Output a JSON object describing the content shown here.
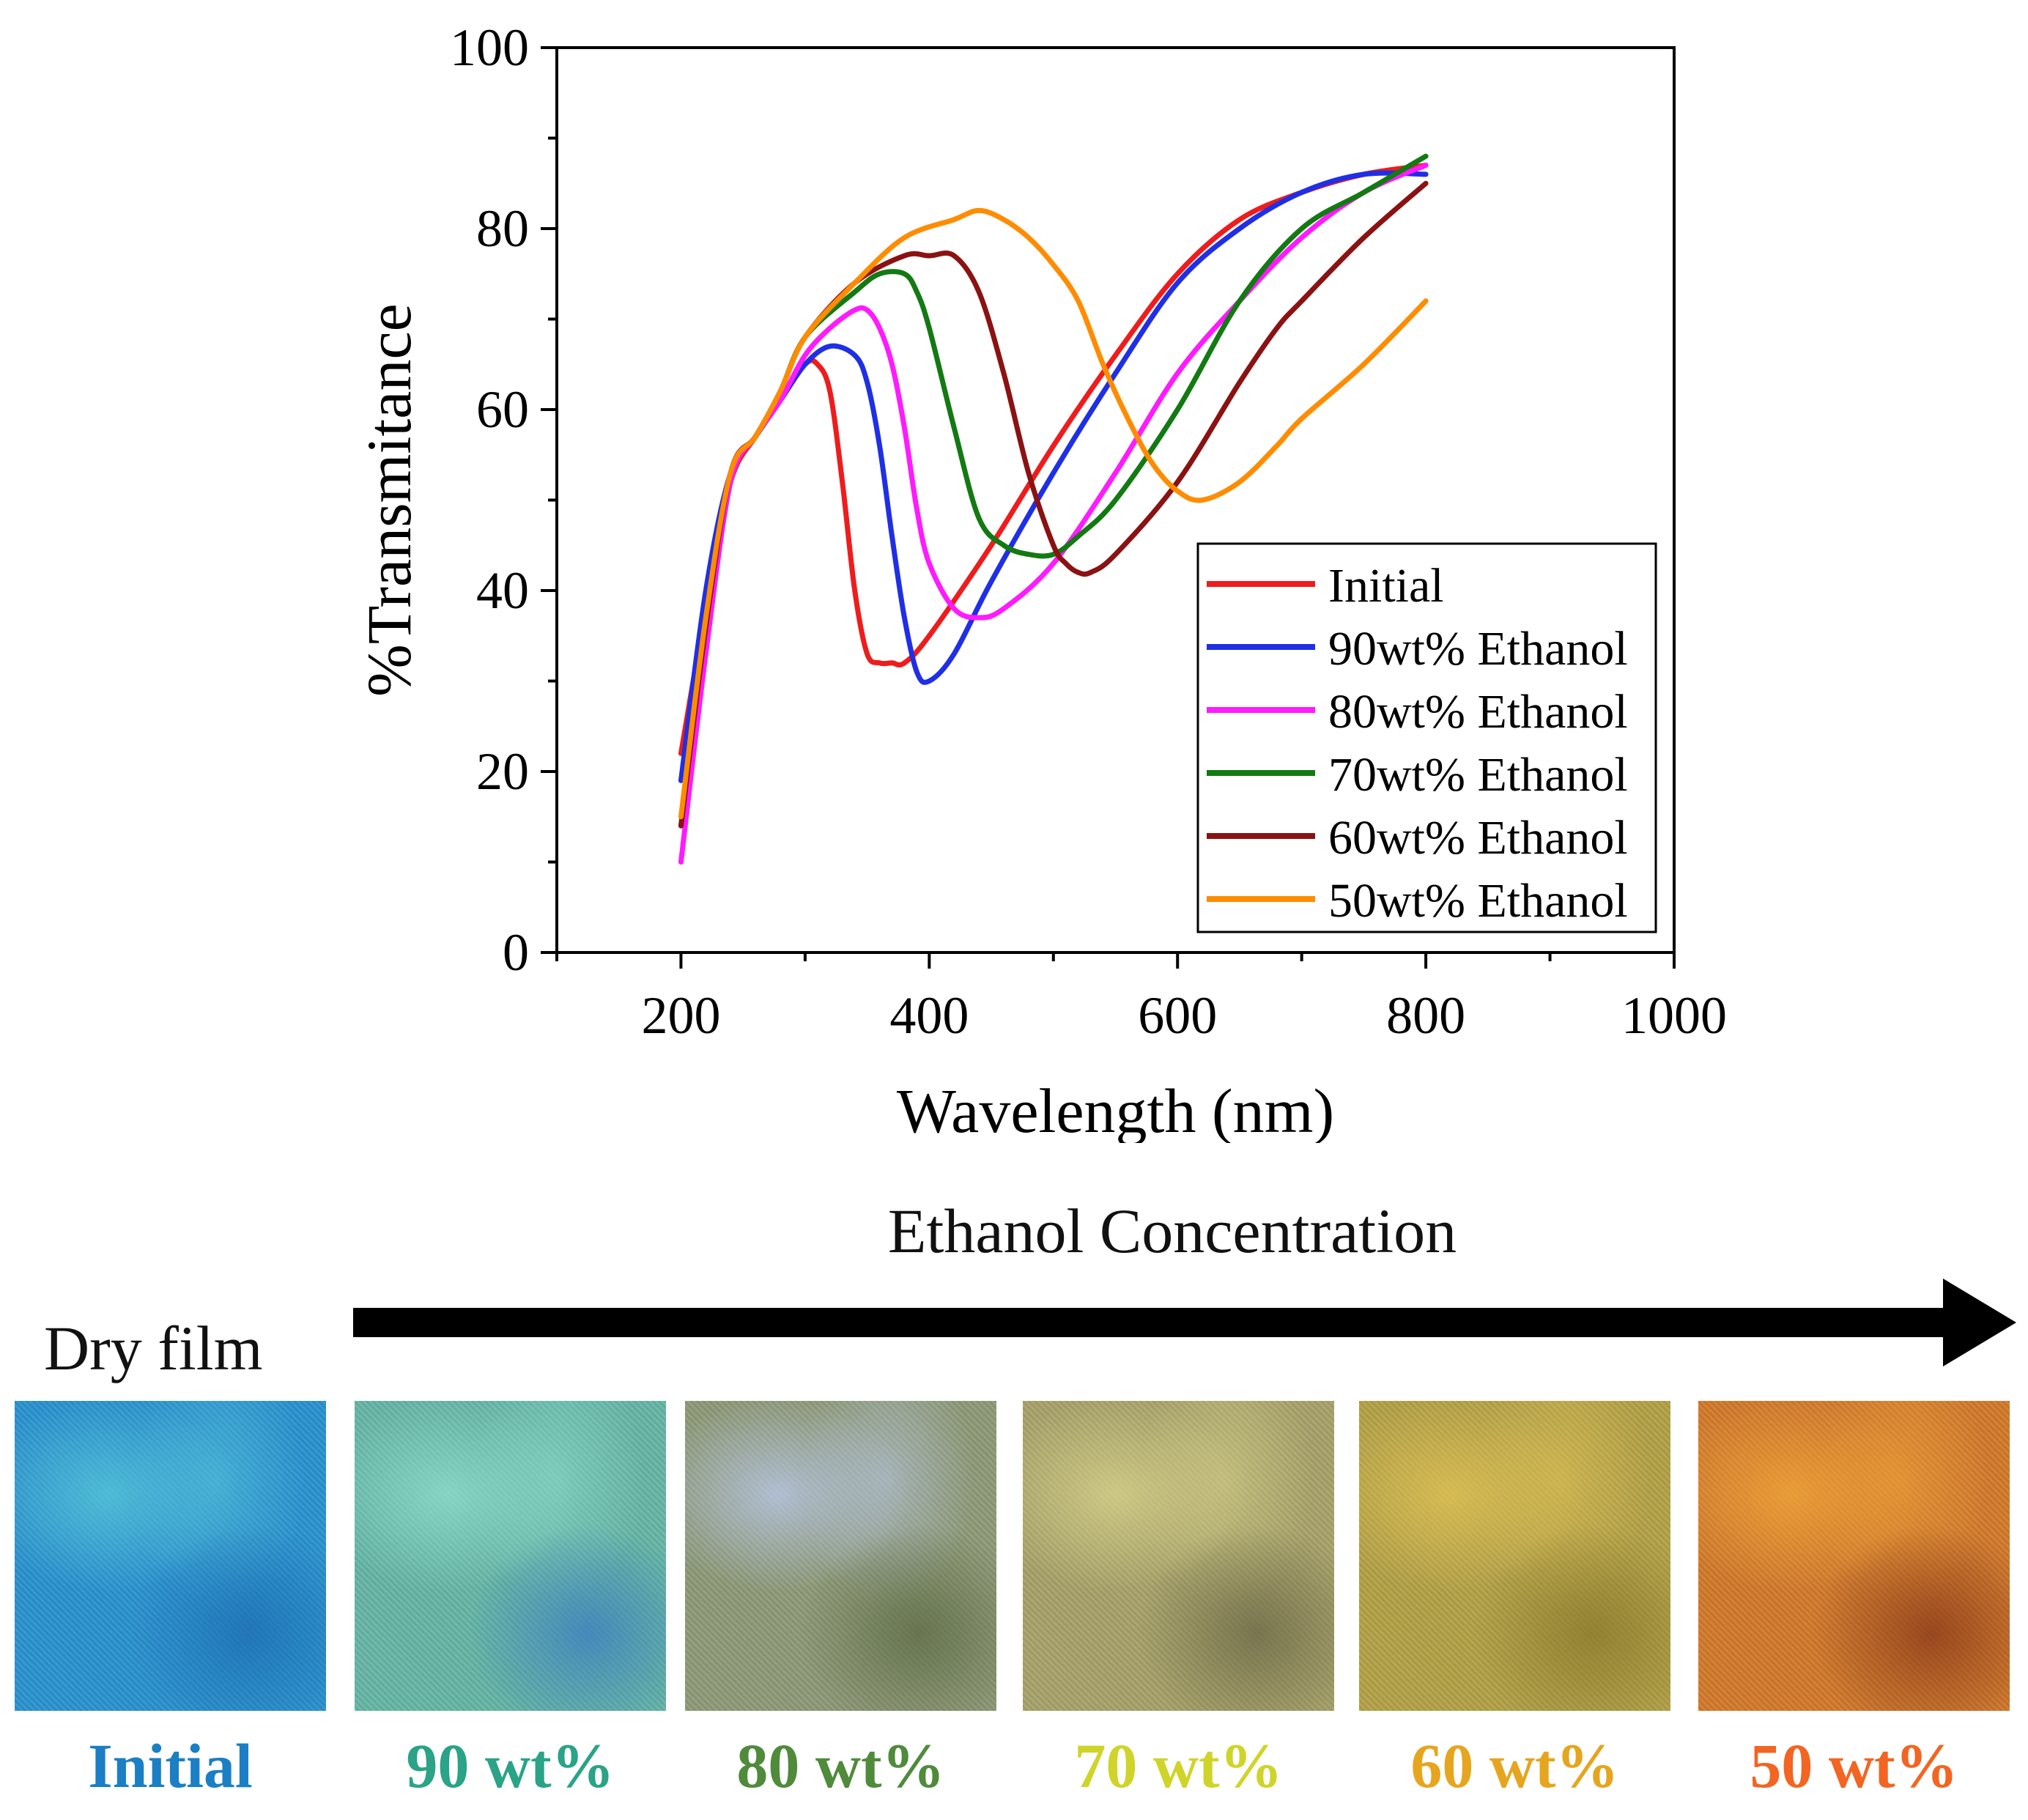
{
  "chart_data": {
    "type": "line",
    "xlabel": "Wavelength (nm)",
    "ylabel": "%Transmitance",
    "xlim": [
      100,
      1000
    ],
    "ylim": [
      0,
      100
    ],
    "xticks": [
      200,
      400,
      600,
      800,
      1000
    ],
    "yticks": [
      0,
      20,
      40,
      60,
      80,
      100
    ],
    "legend_position": "bottom-right",
    "series": [
      {
        "name": "Initial",
        "color": "#ee1c1c",
        "x": [
          200,
          220,
          240,
          260,
          280,
          300,
          310,
          320,
          330,
          340,
          350,
          360,
          370,
          380,
          400,
          450,
          500,
          550,
          600,
          650,
          700,
          750,
          800
        ],
        "y": [
          22,
          38,
          52,
          57,
          61,
          65,
          65,
          62,
          52,
          40,
          33,
          32,
          32,
          32,
          35,
          45,
          56,
          66,
          75,
          81,
          84,
          86,
          87
        ]
      },
      {
        "name": "90wt% Ethanol",
        "color": "#1f2fe6",
        "x": [
          200,
          220,
          240,
          260,
          280,
          300,
          320,
          340,
          350,
          360,
          370,
          380,
          390,
          400,
          420,
          450,
          500,
          550,
          600,
          650,
          700,
          750,
          800
        ],
        "y": [
          19,
          40,
          53,
          57,
          61,
          65,
          67,
          66,
          63,
          56,
          46,
          37,
          31,
          30,
          33,
          41,
          53,
          64,
          74,
          80,
          84,
          86,
          86
        ]
      },
      {
        "name": "80wt% Ethanol",
        "color": "#ff1aff",
        "x": [
          200,
          220,
          240,
          260,
          280,
          300,
          320,
          340,
          350,
          360,
          370,
          380,
          390,
          400,
          420,
          440,
          460,
          500,
          550,
          600,
          650,
          700,
          750,
          800
        ],
        "y": [
          10,
          33,
          52,
          57,
          61,
          66,
          69,
          71,
          71,
          69,
          65,
          58,
          49,
          43,
          38,
          37,
          38,
          43,
          53,
          64,
          72,
          79,
          84,
          87
        ]
      },
      {
        "name": "70wt% Ethanol",
        "color": "#137a13",
        "x": [
          200,
          220,
          240,
          260,
          280,
          300,
          340,
          360,
          380,
          390,
          400,
          420,
          440,
          460,
          480,
          500,
          520,
          550,
          600,
          650,
          700,
          750,
          800
        ],
        "y": [
          14,
          36,
          53,
          57,
          62,
          68,
          73,
          75,
          75,
          73,
          69,
          58,
          48,
          45,
          44,
          44,
          46,
          50,
          60,
          72,
          80,
          84,
          88
        ]
      },
      {
        "name": "60wt% Ethanol",
        "color": "#8b1212",
        "x": [
          200,
          220,
          240,
          260,
          280,
          300,
          340,
          380,
          400,
          420,
          440,
          460,
          480,
          500,
          510,
          520,
          530,
          550,
          600,
          650,
          680,
          700,
          750,
          800
        ],
        "y": [
          14,
          36,
          53,
          57,
          62,
          68,
          74,
          77,
          77,
          77,
          73,
          64,
          53,
          45,
          43,
          42,
          42,
          44,
          52,
          63,
          69,
          72,
          79,
          85
        ]
      },
      {
        "name": "50wt% Ethanol",
        "color": "#ff8c00",
        "x": [
          200,
          220,
          240,
          260,
          280,
          300,
          340,
          380,
          420,
          440,
          460,
          480,
          500,
          520,
          540,
          560,
          580,
          600,
          620,
          650,
          680,
          700,
          750,
          800
        ],
        "y": [
          15,
          37,
          53,
          57,
          62,
          68,
          74,
          79,
          81,
          82,
          81,
          79,
          76,
          72,
          65,
          59,
          54,
          51,
          50,
          52,
          56,
          59,
          65,
          72
        ]
      }
    ]
  },
  "figure": {
    "concentration_title": "Ethanol Concentration",
    "dry_film_label": "Dry film",
    "swatches": [
      {
        "caption": "Initial",
        "caption_color": "#1a7fc4",
        "base_color": "#2a93cf",
        "hi_color": "#58c5d9",
        "lo_color": "#1d6fb3"
      },
      {
        "caption": "90 wt%",
        "caption_color": "#2aa387",
        "base_color": "#66b6a6",
        "hi_color": "#8fdccc",
        "lo_color": "#3b7fc0"
      },
      {
        "caption": "80 wt%",
        "caption_color": "#4f8b3b",
        "base_color": "#8e9a78",
        "hi_color": "#b8c7e8",
        "lo_color": "#5e6c45"
      },
      {
        "caption": "70 wt%",
        "caption_color": "#cfd42a",
        "base_color": "#a8a36a",
        "hi_color": "#d6d28a",
        "lo_color": "#6d6a48"
      },
      {
        "caption": "60 wt%",
        "caption_color": "#e5a51e",
        "base_color": "#b4a247",
        "hi_color": "#e0c256",
        "lo_color": "#8a7a2c"
      },
      {
        "caption": "50 wt%",
        "caption_color": "#f26522",
        "base_color": "#d27a2c",
        "hi_color": "#f0a53a",
        "lo_color": "#8a3b1a"
      }
    ]
  }
}
